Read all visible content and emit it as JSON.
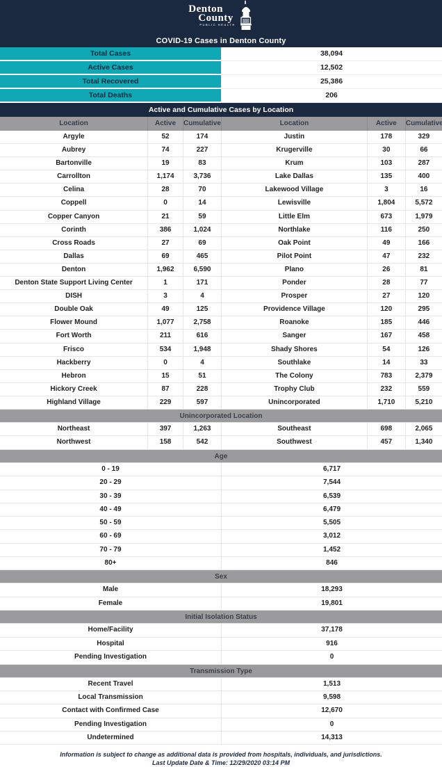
{
  "colors": {
    "navy": "#1a2840",
    "teal": "#10a8b4",
    "gray": "#9b9b9d"
  },
  "header": {
    "logo_line1": "Denton",
    "logo_line2": "County",
    "logo_line3": "PUBLIC HEALTH",
    "title": "COVID-19 Cases in Denton County"
  },
  "summary": {
    "rows": [
      {
        "label": "Total Cases",
        "value": "38,094"
      },
      {
        "label": "Active Cases",
        "value": "12,502"
      },
      {
        "label": "Total Recovered",
        "value": "25,386"
      },
      {
        "label": "Total Deaths",
        "value": "206"
      }
    ]
  },
  "location_section": {
    "title": "Active and Cumulative Cases by Location",
    "columns": [
      "Location",
      "Active",
      "Cumulative",
      "Location",
      "Active",
      "Cumulative"
    ],
    "rows": [
      [
        "Argyle",
        "52",
        "174",
        "Justin",
        "178",
        "329"
      ],
      [
        "Aubrey",
        "74",
        "227",
        "Krugerville",
        "30",
        "66"
      ],
      [
        "Bartonville",
        "19",
        "83",
        "Krum",
        "103",
        "287"
      ],
      [
        "Carrollton",
        "1,174",
        "3,736",
        "Lake Dallas",
        "135",
        "400"
      ],
      [
        "Celina",
        "28",
        "70",
        "Lakewood Village",
        "3",
        "16"
      ],
      [
        "Coppell",
        "0",
        "14",
        "Lewisville",
        "1,804",
        "5,572"
      ],
      [
        "Copper Canyon",
        "21",
        "59",
        "Little Elm",
        "673",
        "1,979"
      ],
      [
        "Corinth",
        "386",
        "1,024",
        "Northlake",
        "116",
        "250"
      ],
      [
        "Cross Roads",
        "27",
        "69",
        "Oak Point",
        "49",
        "166"
      ],
      [
        "Dallas",
        "69",
        "465",
        "Pilot Point",
        "47",
        "232"
      ],
      [
        "Denton",
        "1,962",
        "6,590",
        "Plano",
        "26",
        "81"
      ],
      [
        "Denton State Support Living Center",
        "1",
        "171",
        "Ponder",
        "28",
        "77"
      ],
      [
        "DISH",
        "3",
        "4",
        "Prosper",
        "27",
        "120"
      ],
      [
        "Double Oak",
        "49",
        "125",
        "Providence Village",
        "120",
        "295"
      ],
      [
        "Flower Mound",
        "1,077",
        "2,758",
        "Roanoke",
        "185",
        "446"
      ],
      [
        "Fort Worth",
        "211",
        "616",
        "Sanger",
        "167",
        "458"
      ],
      [
        "Frisco",
        "534",
        "1,948",
        "Shady Shores",
        "54",
        "126"
      ],
      [
        "Hackberry",
        "0",
        "4",
        "Southlake",
        "14",
        "33"
      ],
      [
        "Hebron",
        "15",
        "51",
        "The Colony",
        "783",
        "2,379"
      ],
      [
        "Hickory Creek",
        "87",
        "228",
        "Trophy Club",
        "232",
        "559"
      ],
      [
        "Highland Village",
        "229",
        "597",
        "Unincorporated",
        "1,710",
        "5,210"
      ]
    ]
  },
  "unincorporated_section": {
    "title": "Unincorporated Location",
    "rows": [
      [
        "Northeast",
        "397",
        "1,263",
        "Southeast",
        "698",
        "2,065"
      ],
      [
        "Northwest",
        "158",
        "542",
        "Southwest",
        "457",
        "1,340"
      ]
    ]
  },
  "age_section": {
    "title": "Age",
    "rows": [
      {
        "label": "0 - 19",
        "value": "6,717"
      },
      {
        "label": "20 - 29",
        "value": "7,544"
      },
      {
        "label": "30 - 39",
        "value": "6,539"
      },
      {
        "label": "40 - 49",
        "value": "6,479"
      },
      {
        "label": "50 - 59",
        "value": "5,505"
      },
      {
        "label": "60 - 69",
        "value": "3,012"
      },
      {
        "label": "70 - 79",
        "value": "1,452"
      },
      {
        "label": "80+",
        "value": "846"
      }
    ]
  },
  "sex_section": {
    "title": "Sex",
    "rows": [
      {
        "label": "Male",
        "value": "18,293"
      },
      {
        "label": "Female",
        "value": "19,801"
      }
    ]
  },
  "isolation_section": {
    "title": "Initial Isolation Status",
    "rows": [
      {
        "label": "Home/Facility",
        "value": "37,178"
      },
      {
        "label": "Hospital",
        "value": "916"
      },
      {
        "label": "Pending Investigation",
        "value": "0"
      }
    ]
  },
  "transmission_section": {
    "title": "Transmission Type",
    "rows": [
      {
        "label": "Recent Travel",
        "value": "1,513"
      },
      {
        "label": "Local Transmission",
        "value": "9,598"
      },
      {
        "label": "Contact with Confirmed Case",
        "value": "12,670"
      },
      {
        "label": "Pending Investigation",
        "value": "0"
      },
      {
        "label": "Undetermined",
        "value": "14,313"
      }
    ]
  },
  "footer": {
    "disclaimer": "Information is subject to change as additional data is provided from hospitals, individuals, and jurisdictions.",
    "last_update": "Last Update Date & Time: 12/29/2020 03:14 PM"
  }
}
